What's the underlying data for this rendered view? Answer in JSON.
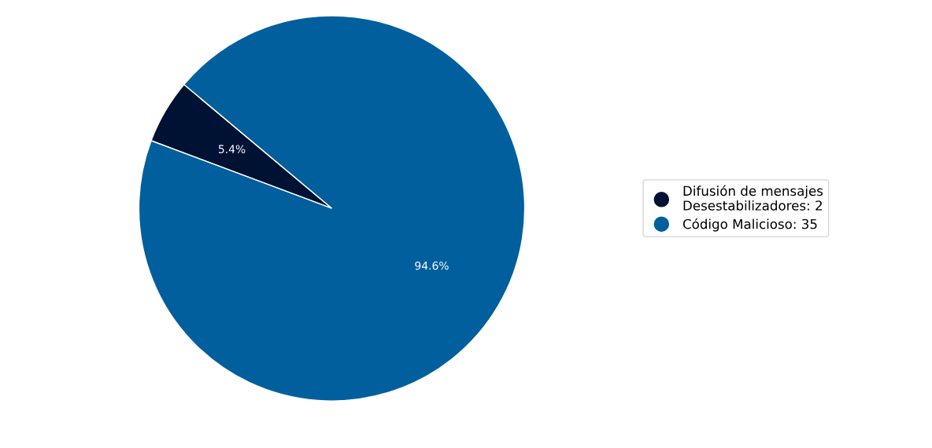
{
  "chart_data": {
    "type": "pie",
    "categories": [
      "Difusión de mensajes\nDesestabilizadores: 2",
      "Código Malicioso: 35"
    ],
    "values": [
      5.4,
      94.6
    ],
    "colors": [
      "#001233",
      "#005f9c"
    ],
    "value_labels": [
      "5.4%",
      "94.6%"
    ],
    "legend": "right"
  }
}
